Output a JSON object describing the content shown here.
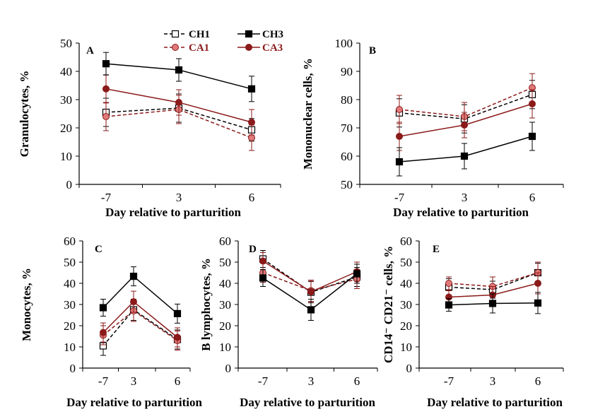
{
  "legend": [
    {
      "name": "CH1",
      "line_color": "#000000",
      "dash": "dashed",
      "marker": "open-square",
      "marker_fill": "#ffffff",
      "marker_stroke": "#000000",
      "text_color": "#000000"
    },
    {
      "name": "CH3",
      "line_color": "#000000",
      "dash": "solid",
      "marker": "square",
      "marker_fill": "#000000",
      "marker_stroke": "#000000",
      "text_color": "#000000"
    },
    {
      "name": "CA1",
      "line_color": "#8b1a1a",
      "dash": "dashed",
      "marker": "circle",
      "marker_fill": "#e07a7a",
      "marker_stroke": "#8b1a1a",
      "text_color": "#8b1a1a"
    },
    {
      "name": "CA3",
      "line_color": "#8b1a1a",
      "dash": "solid",
      "marker": "circle",
      "marker_fill": "#8b1a1a",
      "marker_stroke": "#8b1a1a",
      "text_color": "#8b1a1a"
    }
  ],
  "chart_data": [
    {
      "type": "line",
      "panel": "A",
      "xlabel": "Day relative to parturition",
      "ylabel": "Granulocytes, %",
      "categories": [
        "-7",
        "3",
        "6"
      ],
      "ylim": [
        0,
        50
      ],
      "yticks": [
        0,
        10,
        20,
        30,
        40,
        50
      ],
      "series": [
        {
          "name": "CH1",
          "values": [
            25.5,
            27.0,
            19.3
          ],
          "errors": [
            5.0,
            5.0,
            4.0
          ]
        },
        {
          "name": "CH3",
          "values": [
            42.7,
            40.5,
            33.8
          ],
          "errors": [
            4.0,
            4.0,
            4.5
          ]
        },
        {
          "name": "CA1",
          "values": [
            24.0,
            26.5,
            16.5
          ],
          "errors": [
            5.0,
            5.0,
            4.5
          ]
        },
        {
          "name": "CA3",
          "values": [
            33.8,
            29.0,
            22.0
          ],
          "errors": [
            5.0,
            4.5,
            4.5
          ]
        }
      ]
    },
    {
      "type": "line",
      "panel": "B",
      "xlabel": "Day relative to parturition",
      "ylabel": "Mononuclear cells, %",
      "categories": [
        "-7",
        "3",
        "6"
      ],
      "ylim": [
        50,
        100
      ],
      "yticks": [
        50,
        60,
        70,
        80,
        90,
        100
      ],
      "series": [
        {
          "name": "CH1",
          "values": [
            75.3,
            73.2,
            81.8
          ],
          "errors": [
            5.0,
            5.0,
            5.0
          ]
        },
        {
          "name": "CH3",
          "values": [
            58.0,
            60.0,
            67.0
          ],
          "errors": [
            5.0,
            4.5,
            5.0
          ]
        },
        {
          "name": "CA1",
          "values": [
            76.5,
            74.0,
            84.2
          ],
          "errors": [
            5.0,
            5.0,
            5.0
          ]
        },
        {
          "name": "CA3",
          "values": [
            67.0,
            71.0,
            78.5
          ],
          "errors": [
            5.0,
            4.5,
            5.0
          ]
        }
      ]
    },
    {
      "type": "line",
      "panel": "C",
      "xlabel": "Day relative to parturition",
      "ylabel": "Monocytes, %",
      "categories": [
        "-7",
        "3",
        "6"
      ],
      "ylim": [
        0,
        60
      ],
      "yticks": [
        0,
        10,
        20,
        30,
        40,
        50,
        60
      ],
      "series": [
        {
          "name": "CH1",
          "values": [
            10.5,
            27.5,
            13.5
          ],
          "errors": [
            4.5,
            5.0,
            4.5
          ]
        },
        {
          "name": "CH3",
          "values": [
            28.5,
            43.3,
            25.7
          ],
          "errors": [
            4.0,
            4.5,
            4.5
          ]
        },
        {
          "name": "CA1",
          "values": [
            15.5,
            27.0,
            13.0
          ],
          "errors": [
            4.5,
            5.0,
            4.5
          ]
        },
        {
          "name": "CA3",
          "values": [
            16.8,
            31.3,
            14.5
          ],
          "errors": [
            4.5,
            5.0,
            4.5
          ]
        }
      ]
    },
    {
      "type": "line",
      "panel": "D",
      "xlabel": "Day relative to parturition",
      "ylabel": "B lymphocytes, %",
      "categories": [
        "-7",
        "3",
        "6"
      ],
      "ylim": [
        0,
        60
      ],
      "yticks": [
        0,
        10,
        20,
        30,
        40,
        50,
        60
      ],
      "series": [
        {
          "name": "CH1",
          "values": [
            51.5,
            35.8,
            43.0
          ],
          "errors": [
            4.0,
            5.0,
            4.5
          ]
        },
        {
          "name": "CH3",
          "values": [
            42.5,
            27.5,
            44.5
          ],
          "errors": [
            4.0,
            5.0,
            4.5
          ]
        },
        {
          "name": "CA1",
          "values": [
            45.0,
            36.5,
            42.0
          ],
          "errors": [
            4.5,
            5.0,
            4.5
          ]
        },
        {
          "name": "CA3",
          "values": [
            50.5,
            36.0,
            45.5
          ],
          "errors": [
            4.0,
            5.0,
            4.5
          ]
        }
      ]
    },
    {
      "type": "line",
      "panel": "E",
      "xlabel": "Day relative to parturition",
      "ylabel": "CD14⁻ CD21⁻ cells, %",
      "categories": [
        "-7",
        "3",
        "6"
      ],
      "ylim": [
        0,
        60
      ],
      "yticks": [
        0,
        10,
        20,
        30,
        40,
        50,
        60
      ],
      "series": [
        {
          "name": "CH1",
          "values": [
            38.2,
            37.0,
            45.0
          ],
          "errors": [
            4.0,
            4.0,
            4.5
          ]
        },
        {
          "name": "CH3",
          "values": [
            29.8,
            30.5,
            30.7
          ],
          "errors": [
            3.0,
            4.5,
            5.0
          ]
        },
        {
          "name": "CA1",
          "values": [
            40.0,
            38.5,
            45.0
          ],
          "errors": [
            3.0,
            4.5,
            5.0
          ]
        },
        {
          "name": "CA3",
          "values": [
            33.5,
            34.5,
            40.0
          ],
          "errors": [
            3.0,
            4.0,
            5.0
          ]
        }
      ]
    }
  ]
}
